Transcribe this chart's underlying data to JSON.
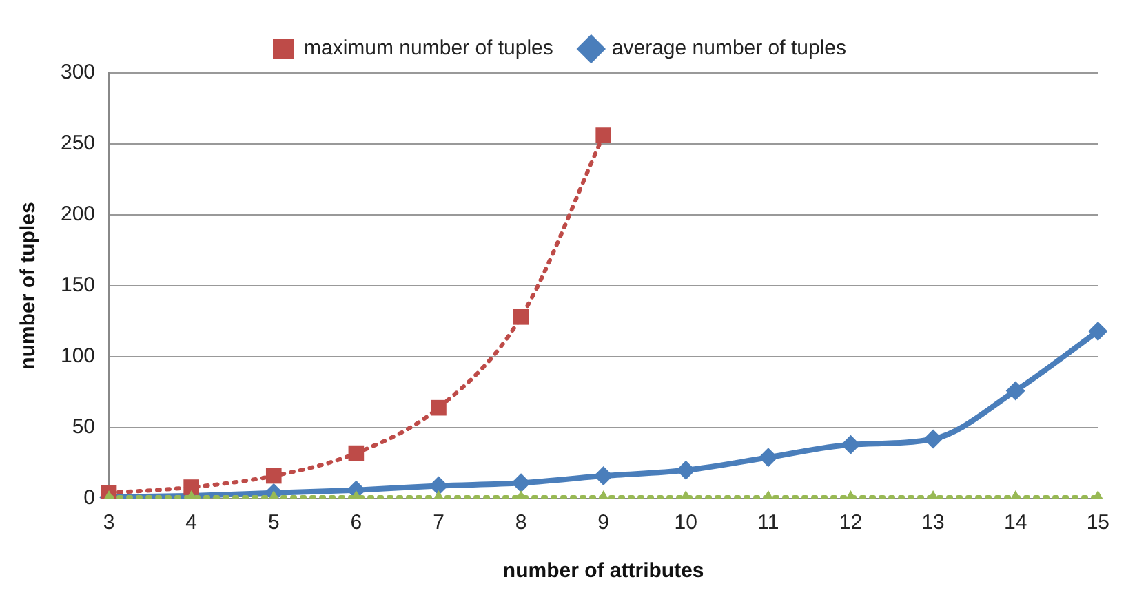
{
  "chart_data": {
    "type": "line",
    "xlabel": "number of attributes",
    "ylabel": "number of tuples",
    "categories": [
      "3",
      "4",
      "5",
      "6",
      "7",
      "8",
      "9",
      "10",
      "11",
      "12",
      "13",
      "14",
      "15"
    ],
    "series": [
      {
        "name": "average number of tuples",
        "color": "#4a7ebb",
        "values": [
          1,
          2,
          4,
          6,
          9,
          11,
          16,
          20,
          29,
          38,
          42,
          76,
          118
        ],
        "marker": "diamond",
        "line_style": "solid"
      },
      {
        "name": "maximum number of tuples",
        "color": "#be4b48",
        "values": [
          4,
          8,
          16,
          32,
          64,
          128,
          256,
          null,
          null,
          null,
          null,
          null,
          null
        ],
        "marker": "square",
        "line_style": "dotted"
      },
      {
        "color": "#98b954",
        "values": [
          1,
          1,
          1,
          1,
          1,
          1,
          1,
          1,
          1,
          1,
          1,
          1,
          1
        ],
        "marker": "triangle",
        "line_style": "dotted"
      }
    ],
    "ylim": [
      0,
      300
    ],
    "yticks": [
      0,
      50,
      100,
      150,
      200,
      250,
      300
    ],
    "grid": "y",
    "legend": "top"
  }
}
